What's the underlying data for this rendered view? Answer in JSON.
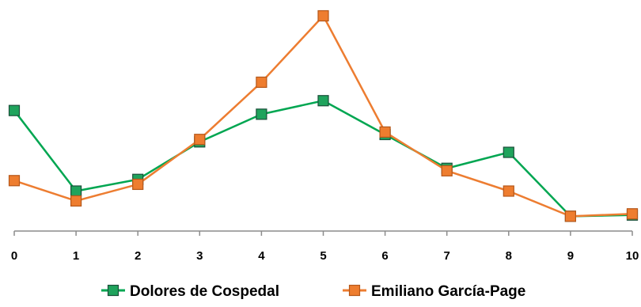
{
  "chart_data": {
    "type": "line",
    "title": "",
    "xlabel": "",
    "ylabel": "",
    "x": [
      0,
      1,
      2,
      3,
      4,
      5,
      6,
      7,
      8,
      9,
      10
    ],
    "ylim": [
      0,
      35
    ],
    "y_axis_visible": false,
    "grid": false,
    "legend_position": "bottom",
    "series": [
      {
        "name": "Dolores de Cospedal",
        "color": "#00a651",
        "marker_fill": "#1fa35c",
        "marker_stroke": "#1b4f3a",
        "values": [
          19.6,
          6.5,
          8.4,
          14.5,
          19.0,
          21.2,
          15.7,
          10.2,
          12.8,
          2.4,
          2.6
        ]
      },
      {
        "name": "Emiliano García-Page",
        "color": "#ed7d31",
        "marker_fill": "#ee7d2f",
        "marker_stroke": "#b5571a",
        "values": [
          8.2,
          4.9,
          7.6,
          14.9,
          24.2,
          35.0,
          16.1,
          9.8,
          6.5,
          2.4,
          2.8
        ]
      }
    ]
  }
}
